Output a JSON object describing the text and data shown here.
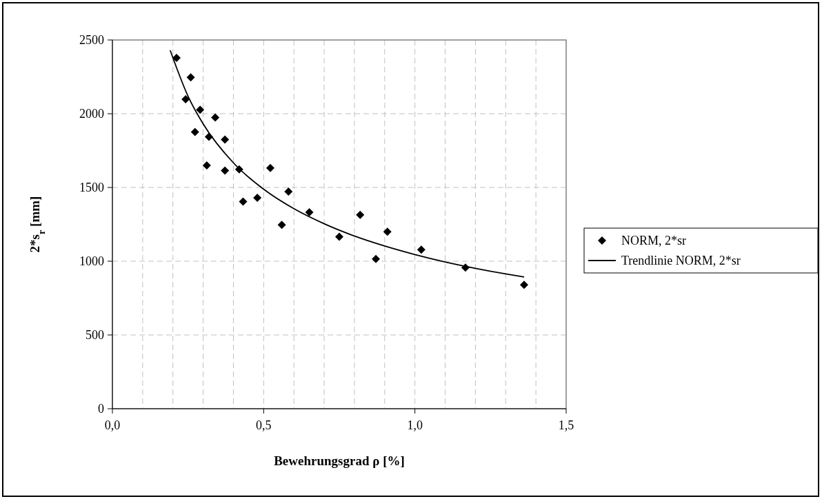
{
  "chart_data": {
    "type": "scatter",
    "xlabel": "Bewehrungsgrad ρ [%]",
    "ylabel": "2*s$_{r}$ [mm]",
    "xlim": [
      0,
      1.5
    ],
    "xticks": [
      {
        "value": 0,
        "label": "0,0"
      },
      {
        "value": 0.1,
        "label": null
      },
      {
        "value": 0.2,
        "label": null
      },
      {
        "value": 0.3,
        "label": null
      },
      {
        "value": 0.4,
        "label": null
      },
      {
        "value": 0.5,
        "label": "0,5"
      },
      {
        "value": 0.6,
        "label": null
      },
      {
        "value": 0.7,
        "label": null
      },
      {
        "value": 0.8,
        "label": null
      },
      {
        "value": 0.9,
        "label": null
      },
      {
        "value": 1.0,
        "label": "1,0"
      },
      {
        "value": 1.1,
        "label": null
      },
      {
        "value": 1.2,
        "label": null
      },
      {
        "value": 1.3,
        "label": null
      },
      {
        "value": 1.4,
        "label": null
      },
      {
        "value": 1.5,
        "label": "1,5"
      }
    ],
    "ylim": [
      0,
      2500
    ],
    "yticks": [
      0,
      500,
      1000,
      1500,
      2000,
      2500
    ],
    "grid": true,
    "legend": "right",
    "series": [
      {
        "name": "NORM, 2*sr",
        "type": "scatter",
        "marker": "diamond",
        "color": "#000000",
        "x": [
          0.212,
          0.259,
          0.242,
          0.29,
          0.34,
          0.273,
          0.319,
          0.372,
          0.312,
          0.372,
          0.419,
          0.522,
          0.582,
          0.432,
          0.479,
          0.651,
          0.56,
          0.75,
          0.819,
          0.871,
          0.909,
          1.021,
          1.167,
          1.361
        ],
        "values": [
          2378,
          2246,
          2098,
          2027,
          1974,
          1876,
          1843,
          1825,
          1649,
          1614,
          1623,
          1632,
          1472,
          1404,
          1430,
          1332,
          1246,
          1166,
          1314,
          1015,
          1200,
          1078,
          957,
          840
        ]
      },
      {
        "name": "Trendlinie NORM, 2*sr",
        "type": "line",
        "marker": "none",
        "line_style": "solid",
        "color": "#000000",
        "x": [
          0.191,
          0.25,
          0.3,
          0.4,
          0.5,
          0.6,
          0.7,
          0.8,
          0.9,
          1.0,
          1.1,
          1.2,
          1.3,
          1.361
        ],
        "values": [
          2430,
          2119,
          1931,
          1667,
          1488,
          1356,
          1254,
          1171,
          1103,
          1045,
          995,
          952,
          914,
          893
        ]
      }
    ]
  }
}
